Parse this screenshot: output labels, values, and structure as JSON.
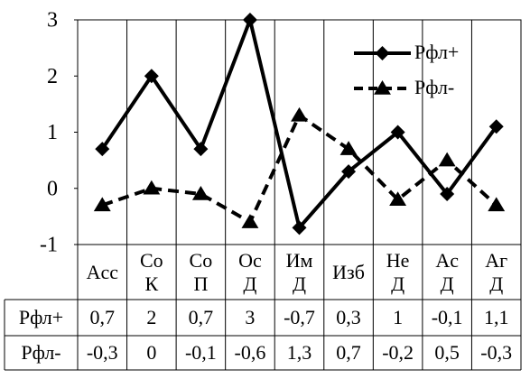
{
  "chart_data": {
    "type": "line",
    "categories": [
      [
        "Acc"
      ],
      [
        "Co",
        "К"
      ],
      [
        "Co",
        "П"
      ],
      [
        "Oc",
        "Д"
      ],
      [
        "Им",
        "Д"
      ],
      [
        "Изб"
      ],
      [
        "He",
        "Д"
      ],
      [
        "Ac",
        "Д"
      ],
      [
        "Аг",
        "Д"
      ]
    ],
    "series": [
      {
        "name": "Рфл+",
        "values": [
          0.7,
          2,
          0.7,
          3,
          -0.7,
          0.3,
          1,
          -0.1,
          1.1
        ],
        "line_style": "solid",
        "marker": "diamond",
        "color": "#000000"
      },
      {
        "name": "Рфл-",
        "values": [
          -0.3,
          0,
          -0.1,
          -0.6,
          1.3,
          0.7,
          -0.2,
          0.5,
          -0.3
        ],
        "line_style": "dashed",
        "marker": "triangle",
        "color": "#000000"
      }
    ],
    "y_tick_labels": [
      "3",
      "2",
      "1",
      "0",
      "-1"
    ],
    "ylim": [
      -1,
      3
    ],
    "grid": "vertical",
    "legend": "top-right",
    "data_table": {
      "rows": [
        {
          "label": "Рфл+",
          "cells": [
            "0,7",
            "2",
            "0,7",
            "3",
            "-0,7",
            "0,3",
            "1",
            "-0,1",
            "1,1"
          ]
        },
        {
          "label": "Рфл-",
          "cells": [
            "-0,3",
            "0",
            "-0,1",
            "-0,6",
            "1,3",
            "0,7",
            "-0,2",
            "0,5",
            "-0,3"
          ]
        }
      ]
    }
  }
}
